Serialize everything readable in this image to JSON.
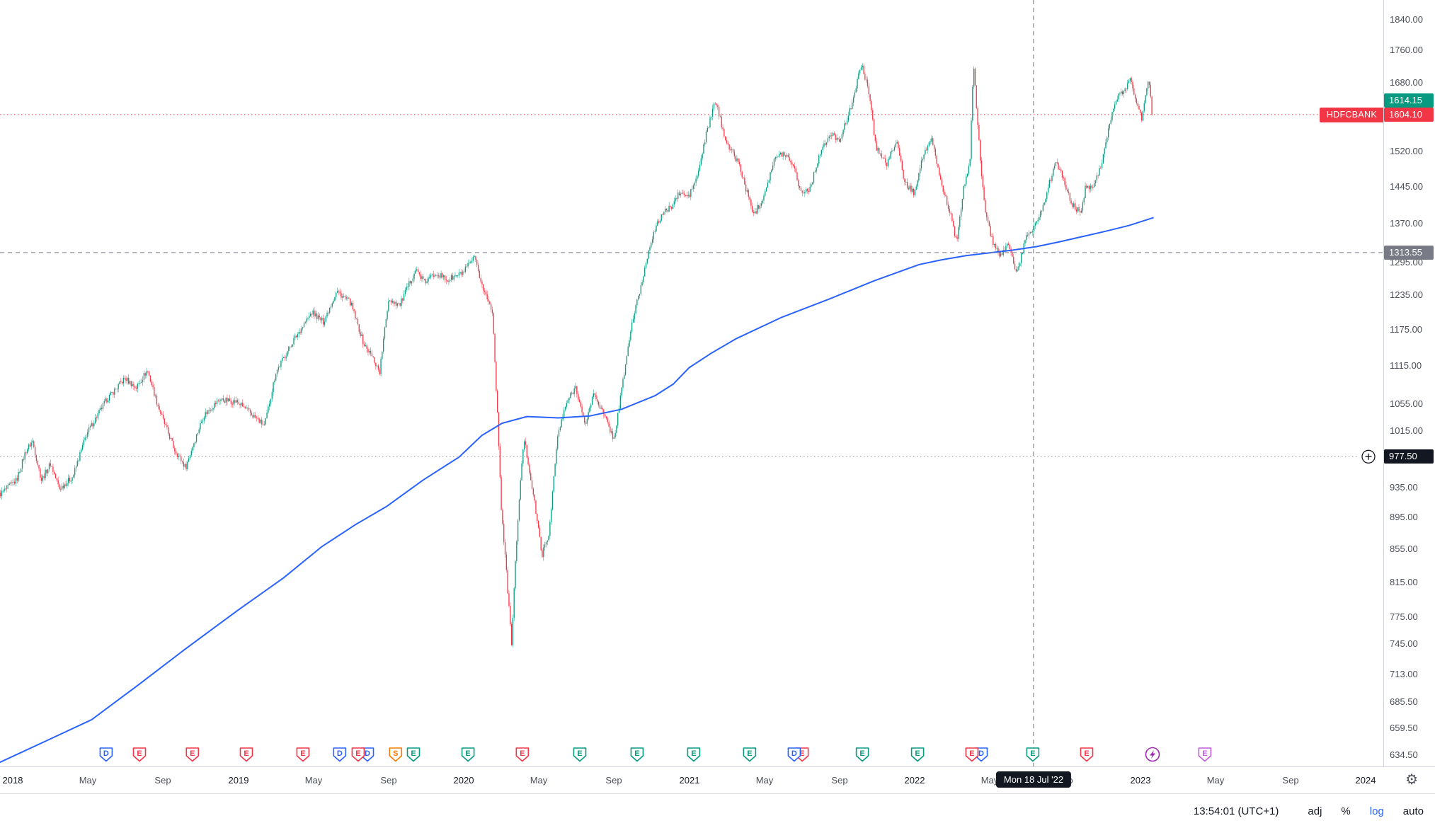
{
  "chart_data": {
    "type": "candlestick",
    "symbol": "HDFCBANK",
    "scale": "log",
    "colors": {
      "up": "#089981",
      "down": "#f23645",
      "ma": "#2962ff",
      "crosshair": "#787b86",
      "dotted": "#9598a1"
    },
    "time_range": [
      2017.943,
      2023.055
    ],
    "render": {
      "candles": 900
    },
    "price_labels": {
      "last": "1604.10",
      "last_value": 1604.1,
      "secondary": "1614.15",
      "secondary_value": 1614.15,
      "crosshair": "1313.55",
      "crosshair_value": 1313.55,
      "alert": "977.50",
      "alert_value": 977.5
    },
    "crosshair_time": 2022.527,
    "crosshair_date_label": "Mon 18 Jul '22",
    "y_ticks": [
      1840,
      1760,
      1680,
      1520,
      1445,
      1370,
      1295,
      1235,
      1175,
      1115,
      1055,
      1015,
      935,
      895,
      855,
      815,
      775,
      745,
      713,
      685.5,
      659.5,
      634.5
    ],
    "x_ticks": [
      {
        "t": 2018,
        "l": "2018",
        "yr": true
      },
      {
        "t": 2018.333,
        "l": "May"
      },
      {
        "t": 2018.667,
        "l": "Sep"
      },
      {
        "t": 2019,
        "l": "2019",
        "yr": true
      },
      {
        "t": 2019.333,
        "l": "May"
      },
      {
        "t": 2019.667,
        "l": "Sep"
      },
      {
        "t": 2020,
        "l": "2020",
        "yr": true
      },
      {
        "t": 2020.333,
        "l": "May"
      },
      {
        "t": 2020.667,
        "l": "Sep"
      },
      {
        "t": 2021,
        "l": "2021",
        "yr": true
      },
      {
        "t": 2021.333,
        "l": "May"
      },
      {
        "t": 2021.667,
        "l": "Sep"
      },
      {
        "t": 2022,
        "l": "2022",
        "yr": true
      },
      {
        "t": 2022.333,
        "l": "May"
      },
      {
        "t": 2022.667,
        "l": "Sep"
      },
      {
        "t": 2023,
        "l": "2023",
        "yr": true
      },
      {
        "t": 2023.333,
        "l": "May"
      },
      {
        "t": 2023.667,
        "l": "Sep"
      },
      {
        "t": 2024,
        "l": "2024",
        "yr": true
      }
    ],
    "price_path": [
      [
        2017.943,
        925
      ],
      [
        2018.02,
        945
      ],
      [
        2018.06,
        985
      ],
      [
        2018.09,
        1000
      ],
      [
        2018.13,
        945
      ],
      [
        2018.17,
        968
      ],
      [
        2018.21,
        933
      ],
      [
        2018.27,
        950
      ],
      [
        2018.33,
        1010
      ],
      [
        2018.42,
        1062
      ],
      [
        2018.5,
        1095
      ],
      [
        2018.55,
        1080
      ],
      [
        2018.6,
        1108
      ],
      [
        2018.64,
        1060
      ],
      [
        2018.67,
        1030
      ],
      [
        2018.72,
        988
      ],
      [
        2018.77,
        962
      ],
      [
        2018.8,
        992
      ],
      [
        2018.85,
        1038
      ],
      [
        2018.92,
        1062
      ],
      [
        2019.0,
        1058
      ],
      [
        2019.06,
        1040
      ],
      [
        2019.12,
        1022
      ],
      [
        2019.17,
        1105
      ],
      [
        2019.25,
        1158
      ],
      [
        2019.33,
        1205
      ],
      [
        2019.38,
        1188
      ],
      [
        2019.44,
        1242
      ],
      [
        2019.5,
        1222
      ],
      [
        2019.56,
        1150
      ],
      [
        2019.6,
        1128
      ],
      [
        2019.63,
        1105
      ],
      [
        2019.67,
        1228
      ],
      [
        2019.72,
        1218
      ],
      [
        2019.79,
        1282
      ],
      [
        2019.83,
        1258
      ],
      [
        2019.88,
        1276
      ],
      [
        2019.93,
        1262
      ],
      [
        2020.0,
        1276
      ],
      [
        2020.05,
        1303
      ],
      [
        2020.09,
        1245
      ],
      [
        2020.13,
        1208
      ],
      [
        2020.17,
        905
      ],
      [
        2020.215,
        745
      ],
      [
        2020.24,
        880
      ],
      [
        2020.27,
        1005
      ],
      [
        2020.31,
        928
      ],
      [
        2020.35,
        848
      ],
      [
        2020.38,
        872
      ],
      [
        2020.42,
        1008
      ],
      [
        2020.46,
        1058
      ],
      [
        2020.5,
        1082
      ],
      [
        2020.54,
        1022
      ],
      [
        2020.58,
        1072
      ],
      [
        2020.62,
        1042
      ],
      [
        2020.67,
        1002
      ],
      [
        2020.71,
        1092
      ],
      [
        2020.75,
        1188
      ],
      [
        2020.79,
        1252
      ],
      [
        2020.83,
        1332
      ],
      [
        2020.88,
        1388
      ],
      [
        2020.92,
        1402
      ],
      [
        2020.96,
        1432
      ],
      [
        2021.0,
        1424
      ],
      [
        2021.04,
        1468
      ],
      [
        2021.08,
        1562
      ],
      [
        2021.12,
        1638
      ],
      [
        2021.15,
        1572
      ],
      [
        2021.18,
        1528
      ],
      [
        2021.22,
        1498
      ],
      [
        2021.26,
        1432
      ],
      [
        2021.29,
        1388
      ],
      [
        2021.33,
        1422
      ],
      [
        2021.38,
        1502
      ],
      [
        2021.42,
        1518
      ],
      [
        2021.46,
        1498
      ],
      [
        2021.5,
        1432
      ],
      [
        2021.54,
        1442
      ],
      [
        2021.58,
        1514
      ],
      [
        2021.63,
        1558
      ],
      [
        2021.67,
        1548
      ],
      [
        2021.71,
        1602
      ],
      [
        2021.75,
        1688
      ],
      [
        2021.77,
        1722
      ],
      [
        2021.8,
        1658
      ],
      [
        2021.83,
        1532
      ],
      [
        2021.88,
        1492
      ],
      [
        2021.92,
        1546
      ],
      [
        2021.96,
        1452
      ],
      [
        2022.0,
        1432
      ],
      [
        2022.04,
        1512
      ],
      [
        2022.08,
        1546
      ],
      [
        2022.12,
        1452
      ],
      [
        2022.16,
        1392
      ],
      [
        2022.19,
        1330
      ],
      [
        2022.22,
        1442
      ],
      [
        2022.25,
        1505
      ],
      [
        2022.258,
        1660
      ],
      [
        2022.265,
        1718
      ],
      [
        2022.28,
        1592
      ],
      [
        2022.3,
        1468
      ],
      [
        2022.32,
        1382
      ],
      [
        2022.35,
        1332
      ],
      [
        2022.38,
        1305
      ],
      [
        2022.42,
        1332
      ],
      [
        2022.455,
        1272
      ],
      [
        2022.5,
        1348
      ],
      [
        2022.53,
        1362
      ],
      [
        2022.56,
        1388
      ],
      [
        2022.6,
        1452
      ],
      [
        2022.63,
        1502
      ],
      [
        2022.66,
        1462
      ],
      [
        2022.7,
        1408
      ],
      [
        2022.74,
        1392
      ],
      [
        2022.76,
        1442
      ],
      [
        2022.8,
        1452
      ],
      [
        2022.83,
        1492
      ],
      [
        2022.87,
        1588
      ],
      [
        2022.9,
        1642
      ],
      [
        2022.93,
        1662
      ],
      [
        2022.96,
        1688
      ],
      [
        2022.99,
        1628
      ],
      [
        2023.01,
        1592
      ],
      [
        2023.03,
        1668
      ],
      [
        2023.045,
        1682
      ],
      [
        2023.055,
        1604.1
      ]
    ],
    "ma_path": [
      [
        2017.943,
        628
      ],
      [
        2018.15,
        648
      ],
      [
        2018.35,
        668
      ],
      [
        2018.56,
        703
      ],
      [
        2018.76,
        739
      ],
      [
        2019.0,
        783
      ],
      [
        2019.2,
        820
      ],
      [
        2019.37,
        858
      ],
      [
        2019.52,
        886
      ],
      [
        2019.66,
        910
      ],
      [
        2019.82,
        945
      ],
      [
        2019.98,
        977
      ],
      [
        2020.08,
        1008
      ],
      [
        2020.17,
        1026
      ],
      [
        2020.28,
        1036
      ],
      [
        2020.42,
        1034
      ],
      [
        2020.56,
        1037
      ],
      [
        2020.7,
        1047
      ],
      [
        2020.85,
        1068
      ],
      [
        2020.93,
        1086
      ],
      [
        2021.0,
        1112
      ],
      [
        2021.1,
        1136
      ],
      [
        2021.21,
        1160
      ],
      [
        2021.41,
        1196
      ],
      [
        2021.62,
        1228
      ],
      [
        2021.82,
        1261
      ],
      [
        2022.02,
        1291
      ],
      [
        2022.12,
        1300
      ],
      [
        2022.23,
        1308
      ],
      [
        2022.43,
        1318
      ],
      [
        2022.54,
        1325
      ],
      [
        2022.64,
        1334
      ],
      [
        2022.84,
        1354
      ],
      [
        2022.95,
        1366
      ],
      [
        2023.06,
        1382
      ]
    ]
  },
  "markers": [
    {
      "t": 2018.414,
      "g": "D",
      "c": "#2962ff"
    },
    {
      "t": 2018.562,
      "g": "E",
      "c": "#f23645"
    },
    {
      "t": 2018.797,
      "g": "E",
      "c": "#f23645"
    },
    {
      "t": 2019.036,
      "g": "E",
      "c": "#f23645"
    },
    {
      "t": 2019.287,
      "g": "E",
      "c": "#f23645"
    },
    {
      "t": 2019.45,
      "g": "D",
      "c": "#2962ff"
    },
    {
      "t": 2019.573,
      "g": "D",
      "c": "#2962ff"
    },
    {
      "t": 2019.532,
      "g": "E",
      "c": "#f23645"
    },
    {
      "t": 2019.698,
      "g": "S",
      "c": "#f57c00"
    },
    {
      "t": 2019.777,
      "g": "E",
      "c": "#089981"
    },
    {
      "t": 2020.019,
      "g": "E",
      "c": "#089981"
    },
    {
      "t": 2020.26,
      "g": "E",
      "c": "#f23645"
    },
    {
      "t": 2020.515,
      "g": "E",
      "c": "#089981"
    },
    {
      "t": 2020.769,
      "g": "E",
      "c": "#089981"
    },
    {
      "t": 2021.02,
      "g": "E",
      "c": "#089981"
    },
    {
      "t": 2021.268,
      "g": "E",
      "c": "#089981"
    },
    {
      "t": 2021.501,
      "g": "E",
      "c": "#f23645"
    },
    {
      "t": 2021.466,
      "g": "D",
      "c": "#2962ff"
    },
    {
      "t": 2021.768,
      "g": "E",
      "c": "#089981"
    },
    {
      "t": 2022.013,
      "g": "E",
      "c": "#089981"
    },
    {
      "t": 2022.295,
      "g": "D",
      "c": "#2962ff"
    },
    {
      "t": 2022.254,
      "g": "E",
      "c": "#f23645"
    },
    {
      "t": 2022.524,
      "g": "E",
      "c": "#089981"
    },
    {
      "t": 2022.763,
      "g": "E",
      "c": "#f23645"
    },
    {
      "t": 2023.055,
      "g": "Z",
      "c": "#9c27b0"
    },
    {
      "t": 2023.287,
      "g": "E",
      "c": "#c45bdc"
    }
  ],
  "bottom_bar": {
    "clock": "13:54:01 (UTC+1)",
    "adj": "adj",
    "percent": "%",
    "log_label": "log",
    "auto": "auto"
  }
}
